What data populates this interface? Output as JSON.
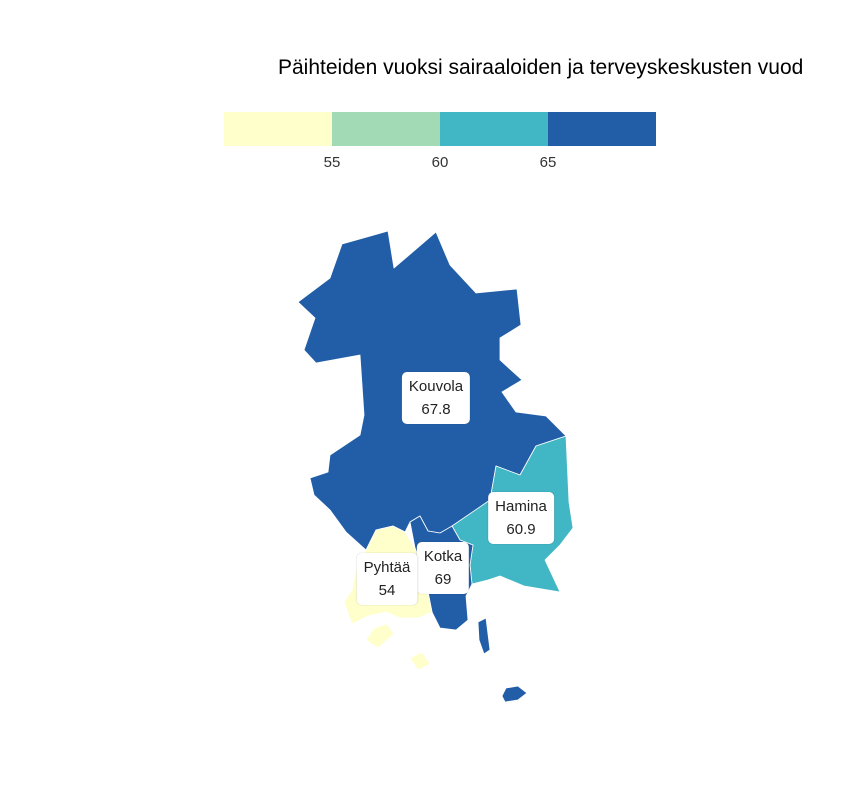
{
  "title": "Päihteiden vuoksi sairaaloiden ja terveyskeskusten vuod",
  "legend": {
    "colors": [
      "#ffffcc",
      "#a1dab4",
      "#41b6c4",
      "#225ea8"
    ],
    "ticks": [
      "55",
      "60",
      "65"
    ]
  },
  "regions": [
    {
      "name": "Kouvola",
      "value": "67.8",
      "color": "#225ea8"
    },
    {
      "name": "Hamina",
      "value": "60.9",
      "color": "#41b6c4"
    },
    {
      "name": "Kotka",
      "value": "69",
      "color": "#225ea8"
    },
    {
      "name": "Pyhtää",
      "value": "54",
      "color": "#ffffcc"
    }
  ]
}
